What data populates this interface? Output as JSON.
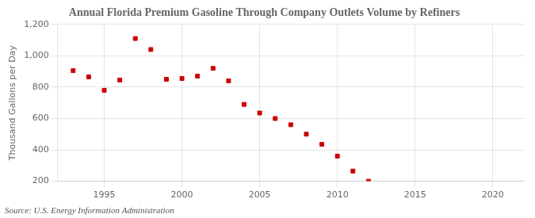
{
  "chart_data": {
    "type": "scatter",
    "title": "Annual Florida Premium Gasoline Through Company Outlets Volume by Refiners",
    "ylabel": "Thousand Gallons per Day",
    "annotations": [
      "Source: U.S. Energy Information Administration"
    ],
    "x": [
      1993,
      1994,
      1995,
      1996,
      1997,
      1998,
      1999,
      2000,
      2001,
      2002,
      2003,
      2004,
      2005,
      2006,
      2007,
      2008,
      2009,
      2010,
      2011,
      2012
    ],
    "values": [
      905,
      865,
      780,
      845,
      1110,
      1040,
      850,
      855,
      870,
      920,
      840,
      690,
      635,
      600,
      560,
      500,
      435,
      360,
      265,
      200
    ],
    "color": "#cc0000",
    "marker": "square",
    "xlim": [
      1992,
      2022
    ],
    "ylim": [
      200,
      1200
    ],
    "xticks": [
      1995,
      2000,
      2005,
      2010,
      2015,
      2020
    ],
    "yticks": [
      200,
      400,
      600,
      800,
      {
        "value": 1000,
        "label": "1,000"
      },
      {
        "value": 1200,
        "label": "1,200"
      }
    ],
    "grid": true
  }
}
